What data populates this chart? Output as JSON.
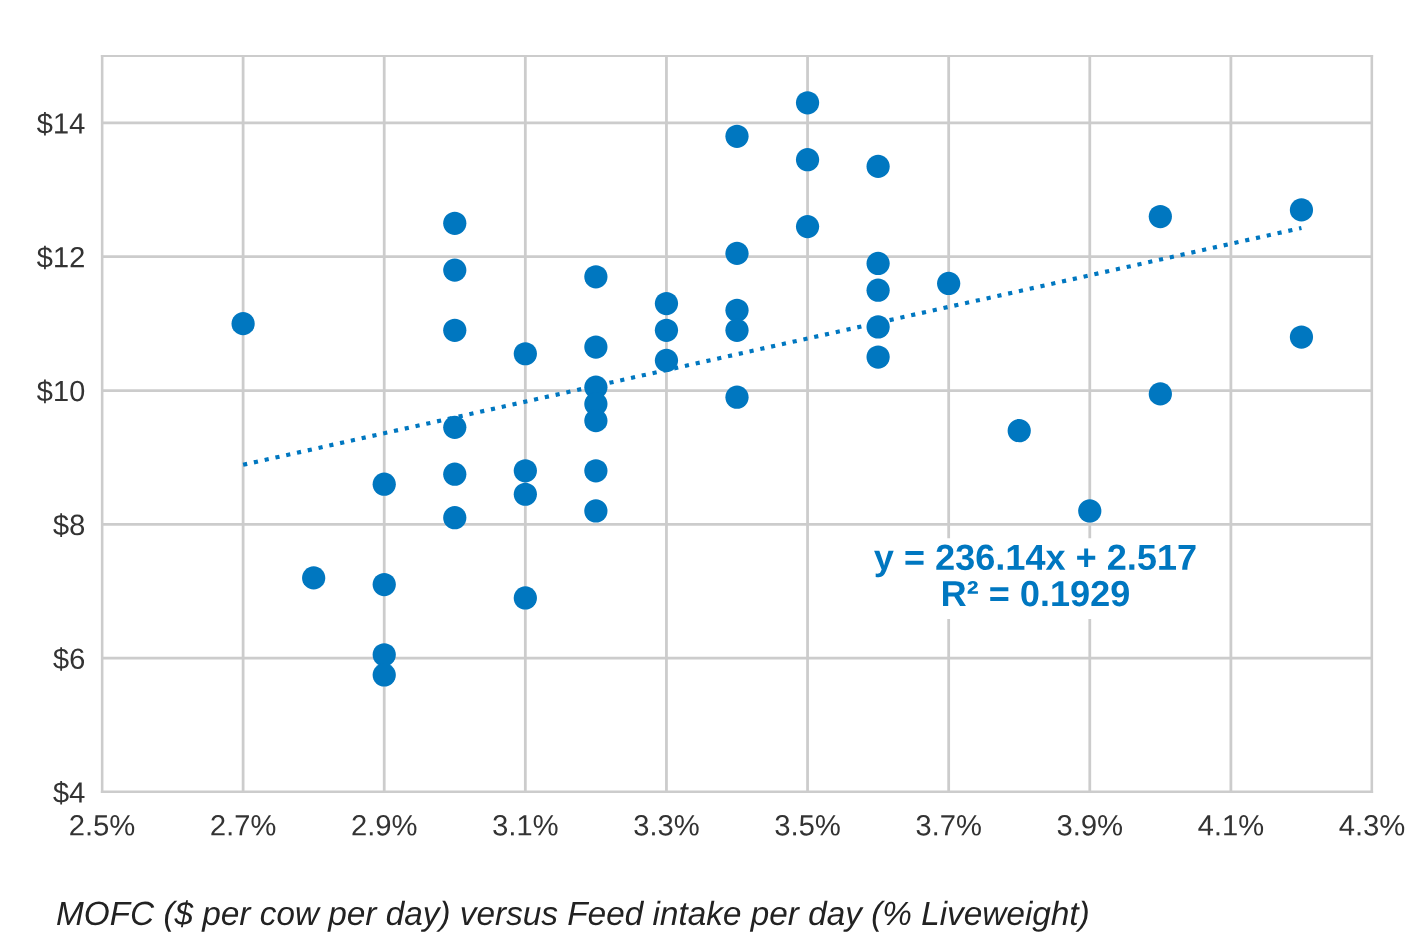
{
  "chart_data": {
    "type": "scatter",
    "xlim": [
      2.5,
      4.3
    ],
    "ylim": [
      4,
      15
    ],
    "xticks": [
      {
        "value": 2.5,
        "label": "2.5%"
      },
      {
        "value": 2.7,
        "label": "2.7%"
      },
      {
        "value": 2.9,
        "label": "2.9%"
      },
      {
        "value": 3.1,
        "label": "3.1%"
      },
      {
        "value": 3.3,
        "label": "3.3%"
      },
      {
        "value": 3.5,
        "label": "3.5%"
      },
      {
        "value": 3.7,
        "label": "3.7%"
      },
      {
        "value": 3.9,
        "label": "3.9%"
      },
      {
        "value": 4.1,
        "label": "4.1%"
      },
      {
        "value": 4.3,
        "label": "4.3%"
      }
    ],
    "yticks": [
      {
        "value": 4,
        "label": "$4"
      },
      {
        "value": 6,
        "label": "$6"
      },
      {
        "value": 8,
        "label": "$8"
      },
      {
        "value": 10,
        "label": "$10"
      },
      {
        "value": 12,
        "label": "$12"
      },
      {
        "value": 14,
        "label": "$14"
      }
    ],
    "grid": true,
    "marker": "circle",
    "series": [
      {
        "color": "#0077c0",
        "x": [
          2.7,
          2.8,
          2.9,
          2.9,
          2.9,
          2.9,
          3.0,
          3.0,
          3.0,
          3.0,
          3.0,
          3.0,
          3.1,
          3.1,
          3.1,
          3.1,
          3.2,
          3.2,
          3.2,
          3.2,
          3.2,
          3.2,
          3.2,
          3.3,
          3.3,
          3.3,
          3.4,
          3.4,
          3.4,
          3.4,
          3.4,
          3.5,
          3.5,
          3.5,
          3.6,
          3.6,
          3.6,
          3.6,
          3.6,
          3.7,
          3.8,
          3.9,
          4.0,
          4.0,
          4.2,
          4.2
        ],
        "values": [
          11.0,
          7.2,
          8.6,
          7.1,
          6.05,
          5.75,
          12.5,
          11.8,
          10.9,
          9.45,
          8.75,
          8.1,
          10.55,
          8.8,
          8.45,
          6.9,
          11.7,
          10.65,
          10.05,
          9.8,
          9.55,
          8.8,
          8.2,
          11.3,
          10.9,
          10.45,
          13.8,
          12.05,
          11.2,
          10.9,
          9.9,
          14.3,
          13.45,
          12.45,
          13.35,
          11.9,
          11.5,
          10.95,
          10.5,
          11.6,
          9.4,
          8.2,
          12.6,
          9.95,
          12.7,
          10.8
        ]
      },
      {
        "type": "line",
        "color": "#0077c0",
        "line_style": "dotted",
        "marker": "none",
        "x": [
          2.7,
          4.2
        ],
        "values": [
          8.89,
          12.43
        ]
      }
    ],
    "annotations": [
      "y = 236.14x + 2.517\nR² = 0.1929",
      "MOFC ($ per cow per day) versus Feed intake per day (% Liveweight)"
    ]
  }
}
